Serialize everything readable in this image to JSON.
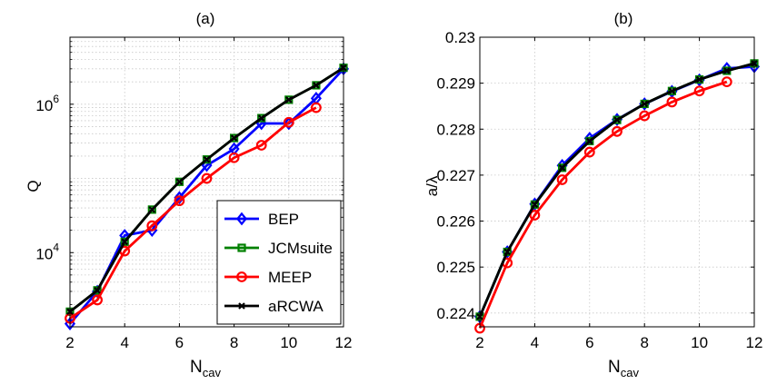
{
  "chart_data": [
    {
      "type": "line",
      "title": "(a)",
      "xlabel": "N",
      "xlabel_sub": "cav",
      "ylabel": "Q",
      "yscale": "log",
      "xlim": [
        2,
        12
      ],
      "ylim": [
        1000,
        8000000
      ],
      "grid": true,
      "x_ticks": [
        2,
        4,
        6,
        8,
        10,
        12
      ],
      "y_ticks": [
        {
          "value": 10000,
          "base": "10",
          "exp": "4"
        },
        {
          "value": 1000000,
          "base": "10",
          "exp": "6"
        }
      ],
      "legend_position": "bottom-right",
      "x": [
        2,
        3,
        4,
        5,
        6,
        7,
        8,
        9,
        10,
        11,
        12
      ],
      "series": [
        {
          "name": "BEP",
          "color": "#0000ff",
          "marker": "diamond",
          "x": [
            2,
            3,
            4,
            5,
            6,
            7,
            8,
            9,
            10,
            11,
            12
          ],
          "values": [
            1100,
            3000,
            17000,
            20000,
            55000,
            150000,
            250000,
            550000,
            550000,
            1200000,
            3000000
          ]
        },
        {
          "name": "JCMsuite",
          "color": "#008000",
          "marker": "square",
          "x": [
            2,
            3,
            4,
            5,
            6,
            7,
            8,
            9,
            10,
            11,
            12
          ],
          "values": [
            1600,
            3100,
            14000,
            38000,
            90000,
            180000,
            350000,
            650000,
            1150000,
            1800000,
            3100000
          ]
        },
        {
          "name": "MEEP",
          "color": "#ff0000",
          "marker": "circle",
          "x": [
            2,
            3,
            4,
            5,
            6,
            7,
            8,
            9,
            10,
            11
          ],
          "values": [
            1300,
            2300,
            10500,
            23000,
            50000,
            100000,
            190000,
            280000,
            570000,
            900000
          ]
        },
        {
          "name": "aRCWA",
          "color": "#000000",
          "marker": "x",
          "x": [
            2,
            3,
            4,
            5,
            6,
            7,
            8,
            9,
            10,
            11,
            12
          ],
          "values": [
            1600,
            3100,
            14000,
            38000,
            90000,
            180000,
            350000,
            650000,
            1150000,
            1800000,
            3100000
          ]
        }
      ]
    },
    {
      "type": "line",
      "title": "(b)",
      "xlabel": "N",
      "xlabel_sub": "cav",
      "ylabel": "a/λ",
      "xlim": [
        2,
        12
      ],
      "ylim": [
        0.2237,
        0.23
      ],
      "grid": true,
      "x_ticks": [
        2,
        4,
        6,
        8,
        10,
        12
      ],
      "y_ticks": [
        "0.224",
        "0.225",
        "0.226",
        "0.227",
        "0.228",
        "0.229",
        "0.23"
      ],
      "x": [
        2,
        3,
        4,
        5,
        6,
        7,
        8,
        9,
        10,
        11,
        12
      ],
      "series": [
        {
          "name": "BEP",
          "color": "#0000ff",
          "marker": "diamond",
          "x": [
            2,
            3,
            4,
            5,
            6,
            7,
            8,
            9,
            10,
            11,
            12
          ],
          "values": [
            0.22392,
            0.22533,
            0.22637,
            0.22721,
            0.2278,
            0.22821,
            0.22855,
            0.22882,
            0.22907,
            0.22932,
            0.22936
          ]
        },
        {
          "name": "JCMsuite",
          "color": "#008000",
          "marker": "square",
          "x": [
            2,
            3,
            4,
            5,
            6,
            7,
            8,
            9,
            10,
            11,
            12
          ],
          "values": [
            0.22392,
            0.22533,
            0.22636,
            0.22716,
            0.22774,
            0.2282,
            0.22855,
            0.22883,
            0.22908,
            0.22927,
            0.22943
          ]
        },
        {
          "name": "MEEP",
          "color": "#ff0000",
          "marker": "circle",
          "x": [
            2,
            3,
            4,
            5,
            6,
            7,
            8,
            9,
            10,
            11
          ],
          "values": [
            0.22367,
            0.22509,
            0.22613,
            0.2269,
            0.2275,
            0.22795,
            0.22829,
            0.22859,
            0.22883,
            0.22903
          ]
        },
        {
          "name": "aRCWA",
          "color": "#000000",
          "marker": "x",
          "x": [
            2,
            3,
            4,
            5,
            6,
            7,
            8,
            9,
            10,
            11,
            12
          ],
          "values": [
            0.22392,
            0.22533,
            0.22636,
            0.22716,
            0.22774,
            0.2282,
            0.22855,
            0.22883,
            0.22908,
            0.22927,
            0.22943
          ]
        }
      ]
    }
  ]
}
